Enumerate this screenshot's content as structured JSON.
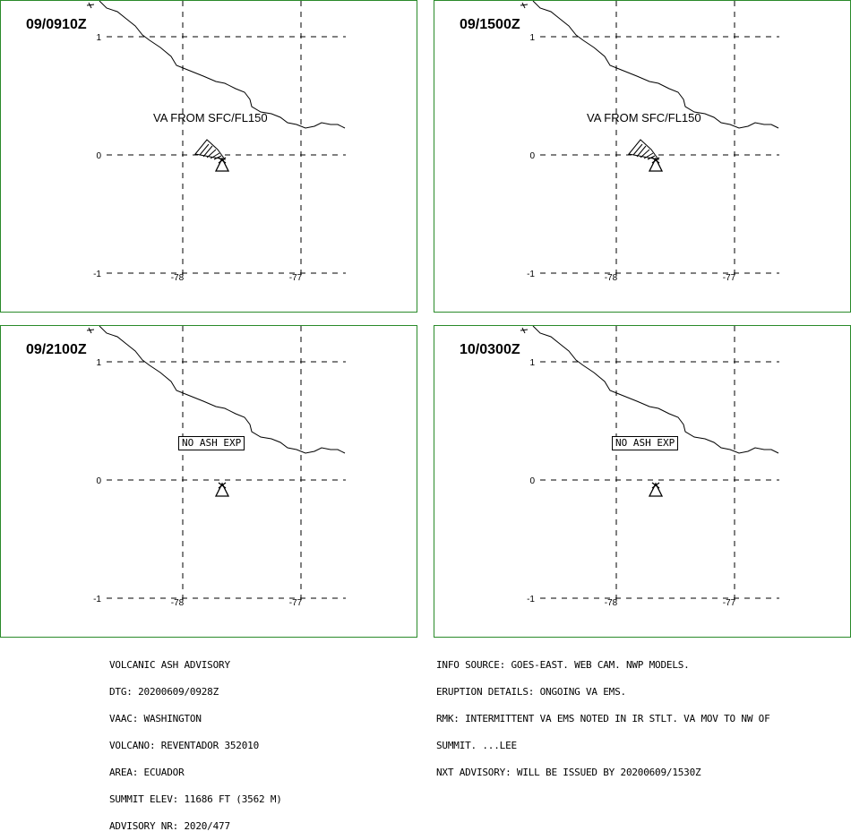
{
  "panels": [
    {
      "time": "09/0910Z",
      "label": "VA FROM SFC/FL150",
      "ash": true
    },
    {
      "time": "09/1500Z",
      "label": "VA FROM SFC/FL150",
      "ash": true
    },
    {
      "time": "09/2100Z",
      "label": "NO ASH EXP",
      "ash": false
    },
    {
      "time": "10/0300Z",
      "label": "NO ASH EXP",
      "ash": false
    }
  ],
  "axes": {
    "lat_labels": [
      "1",
      "0",
      "-1"
    ],
    "lon_labels": [
      "-78",
      "-77"
    ]
  },
  "advisory_left": [
    "VOLCANIC ASH ADVISORY",
    "DTG: 20200609/0928Z",
    "VAAC: WASHINGTON",
    "VOLCANO: REVENTADOR 352010",
    "AREA: ECUADOR",
    "SUMMIT ELEV: 11686 FT (3562 M)",
    "ADVISORY NR: 2020/477"
  ],
  "advisory_right": [
    "INFO SOURCE: GOES-EAST. WEB CAM. NWP MODELS.",
    "ERUPTION DETAILS: ONGOING VA EMS.",
    "RMK: INTERMITTENT VA EMS NOTED IN IR STLT. VA MOV TO NW OF",
    "SUMMIT. ...LEE",
    "NXT ADVISORY: WILL BE ISSUED BY 20200609/1530Z"
  ],
  "colors": {
    "border": "#2a8a2a",
    "lines": "#000000",
    "background": "#ffffff"
  }
}
